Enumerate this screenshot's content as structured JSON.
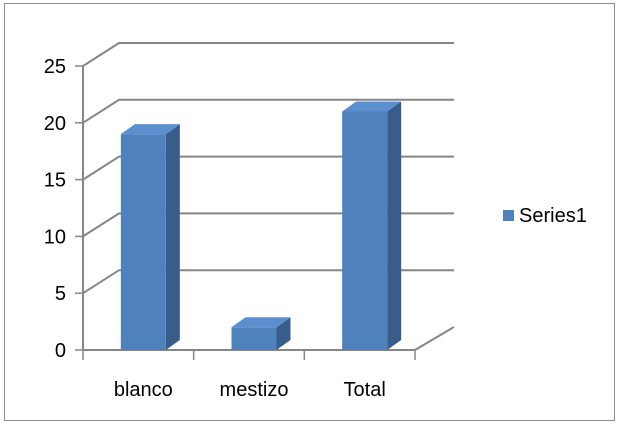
{
  "chart_data": {
    "type": "bar",
    "style": "3d-column",
    "categories": [
      "blanco",
      "mestizo",
      "Total"
    ],
    "series": [
      {
        "name": "Series1",
        "values": [
          19,
          2,
          21
        ]
      }
    ],
    "y_ticks": [
      "0",
      "5",
      "10",
      "15",
      "20",
      "25"
    ],
    "ylim": [
      0,
      25
    ],
    "grid": true,
    "legend": "right",
    "colors": {
      "bar_front": "#4f81bd",
      "bar_side": "#385d8a",
      "bar_top": "#5b8fd0",
      "grid": "#868686"
    }
  }
}
